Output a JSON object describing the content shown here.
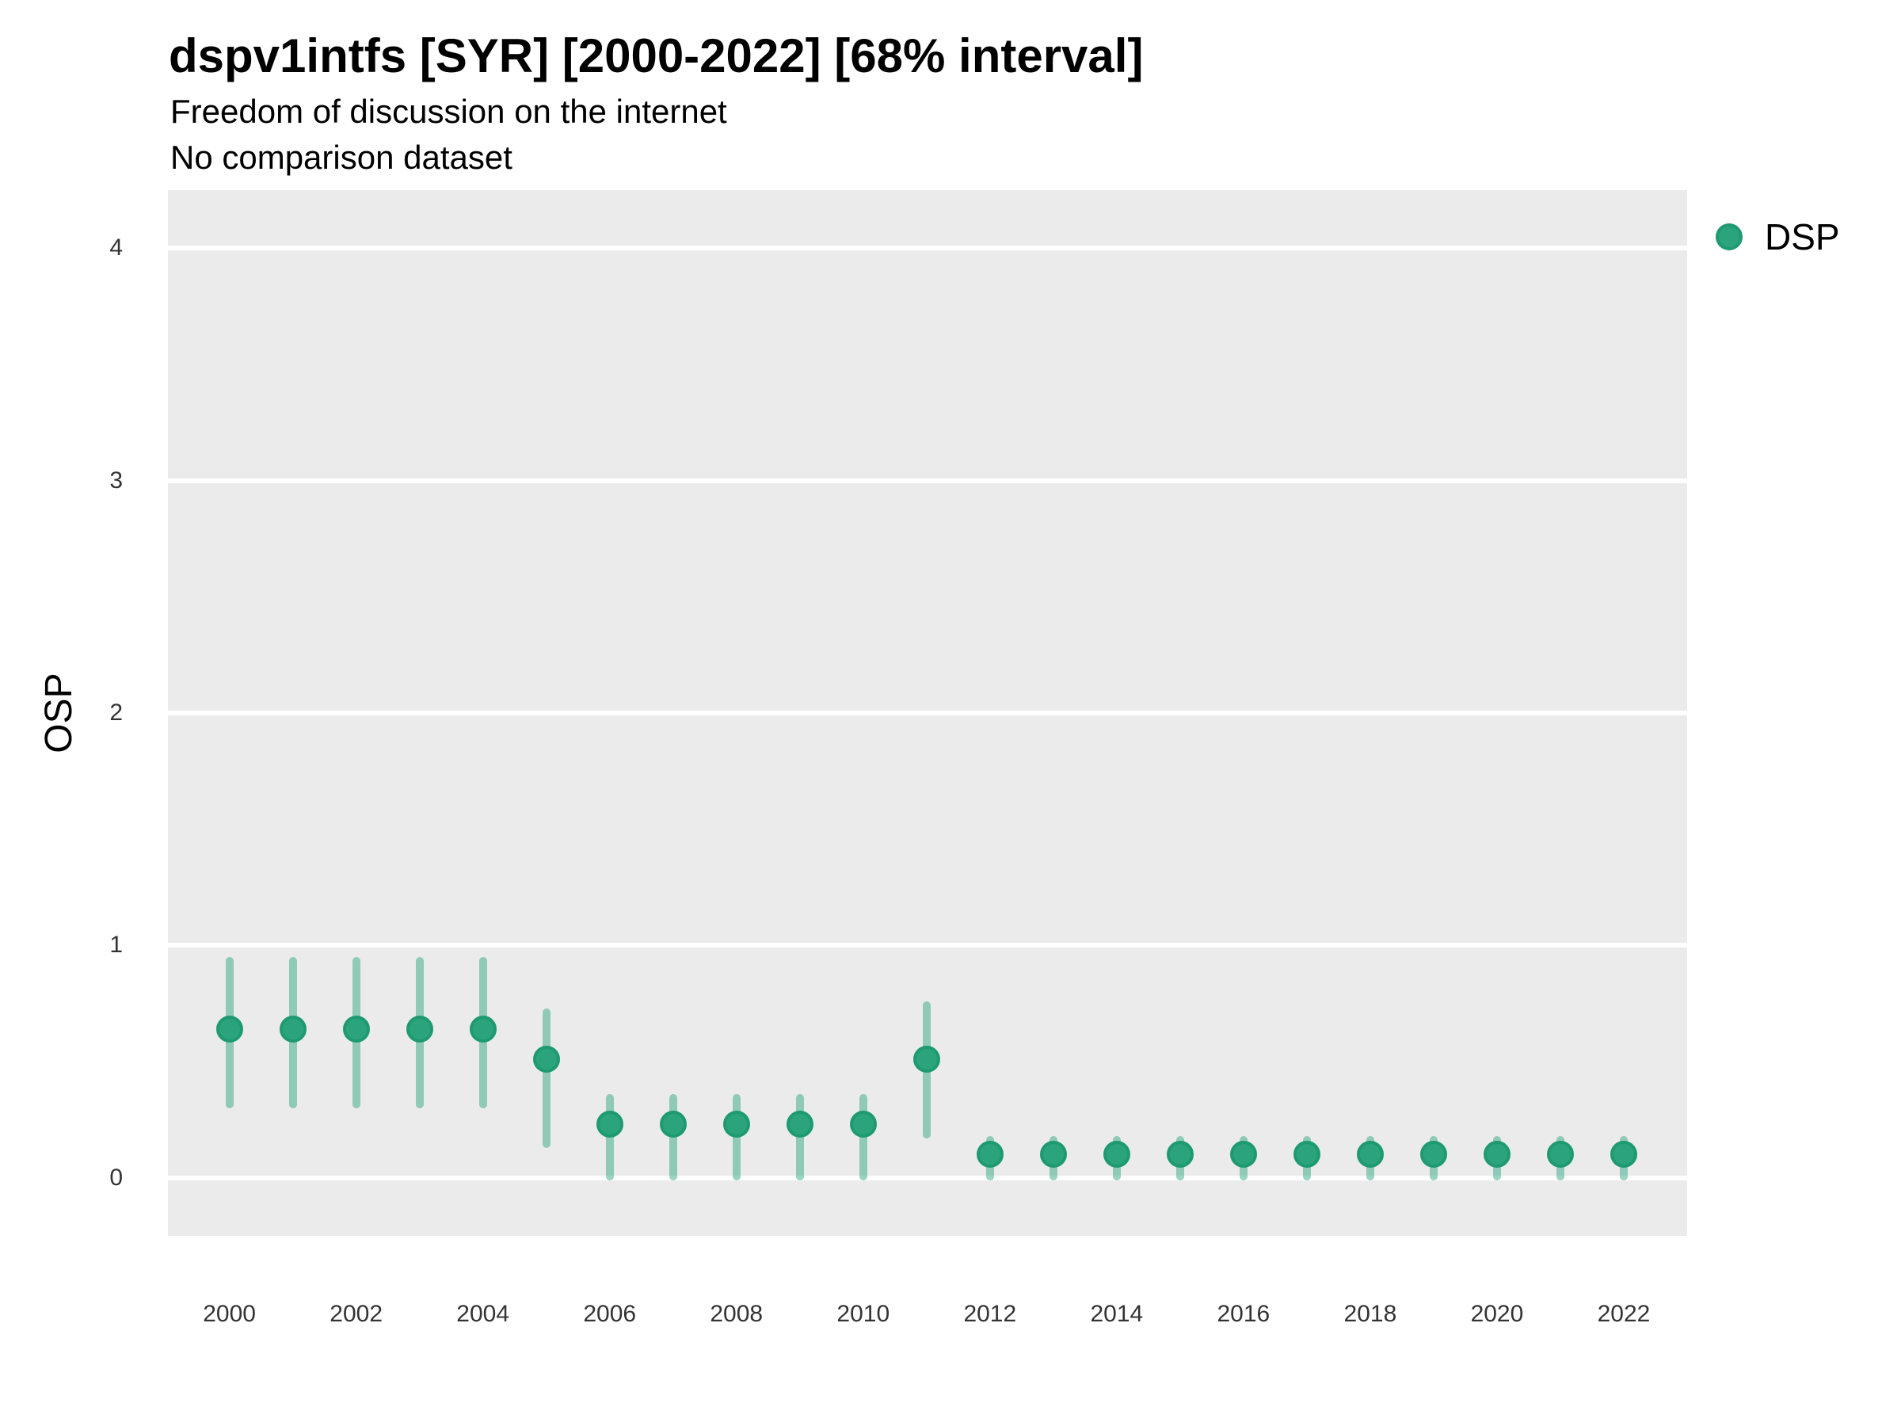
{
  "header": {
    "title": "dspv1intfs [SYR] [2000-2022] [68% interval]",
    "subtitle": "Freedom of discussion on the internet",
    "subtitle2": "No comparison dataset"
  },
  "chart_data": {
    "type": "pointrange",
    "title": "dspv1intfs [SYR] [2000-2022] [68% interval]",
    "subtitle": "Freedom of discussion on the internet",
    "comparison_note": "No comparison dataset",
    "interval": "68%",
    "country": "SYR",
    "xlabel": "",
    "ylabel": "OSP",
    "legend": {
      "label": "DSP",
      "position": "right-top"
    },
    "grid": "horizontal-major-only",
    "xlim": [
      1999.03,
      2023.0
    ],
    "ylim": [
      -0.25,
      4.25
    ],
    "yticks": [
      0,
      1,
      2,
      3,
      4
    ],
    "xticks": [
      2000,
      2002,
      2004,
      2006,
      2008,
      2010,
      2012,
      2014,
      2016,
      2018,
      2020,
      2022
    ],
    "colors": {
      "point_fill": "#2BA47E",
      "point_border": "#1E9A71",
      "interval_bar": "rgba(42,162,126,0.48)",
      "panel_background": "#EBEBEB",
      "gridline": "#FFFFFF",
      "axis_text": "#333333",
      "title_text": "#000000"
    },
    "series": [
      {
        "name": "DSP",
        "points": [
          {
            "year": 2000,
            "est": 0.64,
            "low": 0.3,
            "high": 0.95
          },
          {
            "year": 2001,
            "est": 0.64,
            "low": 0.3,
            "high": 0.95
          },
          {
            "year": 2002,
            "est": 0.64,
            "low": 0.3,
            "high": 0.95
          },
          {
            "year": 2003,
            "est": 0.64,
            "low": 0.3,
            "high": 0.95
          },
          {
            "year": 2004,
            "est": 0.64,
            "low": 0.3,
            "high": 0.95
          },
          {
            "year": 2005,
            "est": 0.51,
            "low": 0.13,
            "high": 0.73
          },
          {
            "year": 2006,
            "est": 0.23,
            "low": -0.01,
            "high": 0.36
          },
          {
            "year": 2007,
            "est": 0.23,
            "low": -0.01,
            "high": 0.36
          },
          {
            "year": 2008,
            "est": 0.23,
            "low": -0.01,
            "high": 0.36
          },
          {
            "year": 2009,
            "est": 0.23,
            "low": -0.01,
            "high": 0.36
          },
          {
            "year": 2010,
            "est": 0.23,
            "low": -0.01,
            "high": 0.36
          },
          {
            "year": 2011,
            "est": 0.51,
            "low": 0.17,
            "high": 0.76
          },
          {
            "year": 2012,
            "est": 0.1,
            "low": -0.01,
            "high": 0.18
          },
          {
            "year": 2013,
            "est": 0.1,
            "low": -0.01,
            "high": 0.18
          },
          {
            "year": 2014,
            "est": 0.1,
            "low": -0.01,
            "high": 0.18
          },
          {
            "year": 2015,
            "est": 0.1,
            "low": -0.01,
            "high": 0.18
          },
          {
            "year": 2016,
            "est": 0.1,
            "low": -0.01,
            "high": 0.18
          },
          {
            "year": 2017,
            "est": 0.1,
            "low": -0.01,
            "high": 0.18
          },
          {
            "year": 2018,
            "est": 0.1,
            "low": -0.01,
            "high": 0.18
          },
          {
            "year": 2019,
            "est": 0.1,
            "low": -0.01,
            "high": 0.18
          },
          {
            "year": 2020,
            "est": 0.1,
            "low": -0.01,
            "high": 0.18
          },
          {
            "year": 2021,
            "est": 0.1,
            "low": -0.01,
            "high": 0.18
          },
          {
            "year": 2022,
            "est": 0.1,
            "low": -0.01,
            "high": 0.18
          }
        ]
      }
    ]
  }
}
